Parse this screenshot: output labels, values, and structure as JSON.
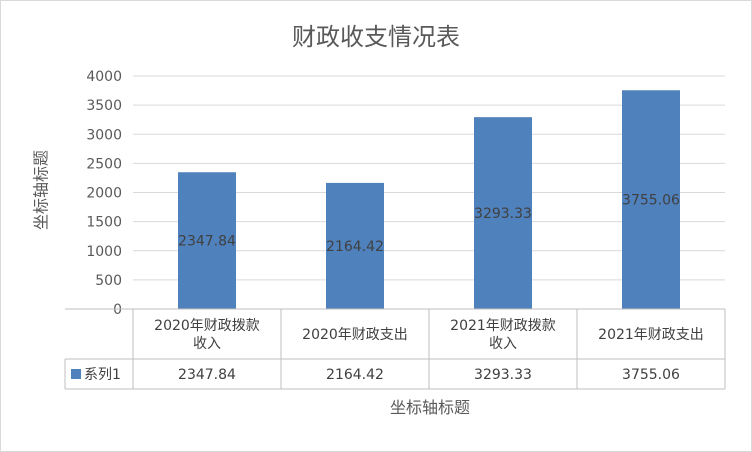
{
  "chart_data": {
    "type": "bar",
    "title": "财政收支情况表",
    "xlabel": "坐标轴标题",
    "ylabel": "坐标轴标题",
    "ylim": [
      0,
      4000
    ],
    "ytick_step": 500,
    "categories": [
      [
        "2020年财政拨款",
        "收入"
      ],
      [
        "2020年财政支出"
      ],
      [
        "2021年财政拨款",
        "收入"
      ],
      [
        "2021年财政支出"
      ]
    ],
    "series": [
      {
        "name": "系列1",
        "values": [
          2347.84,
          2164.42,
          3293.33,
          3755.06
        ],
        "labels": [
          "2347.84",
          "2164.42",
          "3293.33",
          "3755.06"
        ],
        "color": "#4F81BD"
      }
    ],
    "data_table": true,
    "gridlines": true,
    "legend": "data-table"
  }
}
